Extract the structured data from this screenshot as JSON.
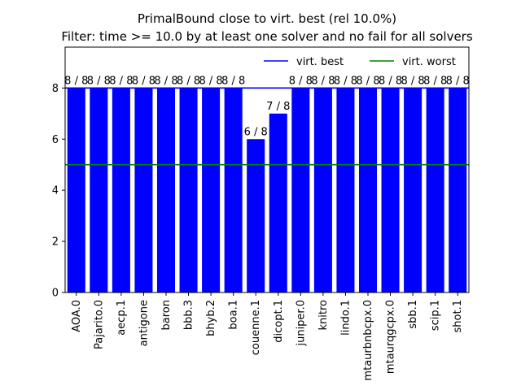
{
  "chart_data": {
    "type": "bar",
    "title": "PrimalBound close to virt. best (rel 10.0%)",
    "subtitle": "Filter: time >= 10.0 by at least one solver and no fail for all solvers",
    "xlabel": "",
    "ylabel": "",
    "ylim": [
      0,
      9.6
    ],
    "yticks": [
      0,
      2,
      4,
      6,
      8
    ],
    "categories": [
      "AOA.0",
      "Pajarito.0",
      "aecp.1",
      "antigone",
      "baron",
      "bbb.3",
      "bhyb.2",
      "boa.1",
      "couenne.1",
      "dicopt.1",
      "juniper.0",
      "knitro",
      "lindo.1",
      "mtaurbnbcpx.0",
      "mtaurqgcpx.0",
      "sbb.1",
      "scip.1",
      "shot.1"
    ],
    "values": [
      8,
      8,
      8,
      8,
      8,
      8,
      8,
      8,
      6,
      7,
      8,
      8,
      8,
      8,
      8,
      8,
      8,
      8
    ],
    "data_labels": [
      "8 / 8",
      "8 / 8",
      "8 / 8",
      "8 / 8",
      "8 / 8",
      "8 / 8",
      "8 / 8",
      "8 / 8",
      "6 / 8",
      "7 / 8",
      "8 / 8",
      "8 / 8",
      "8 / 8",
      "8 / 8",
      "8 / 8",
      "8 / 8",
      "8 / 8",
      "8 / 8"
    ],
    "bar_color": "#0000ff",
    "reference_lines": [
      {
        "name": "virt. best",
        "value": 8,
        "color": "#0000ff"
      },
      {
        "name": "virt. worst",
        "value": 5,
        "color": "#008000"
      }
    ],
    "legend_position": "top-right",
    "grid": false
  }
}
